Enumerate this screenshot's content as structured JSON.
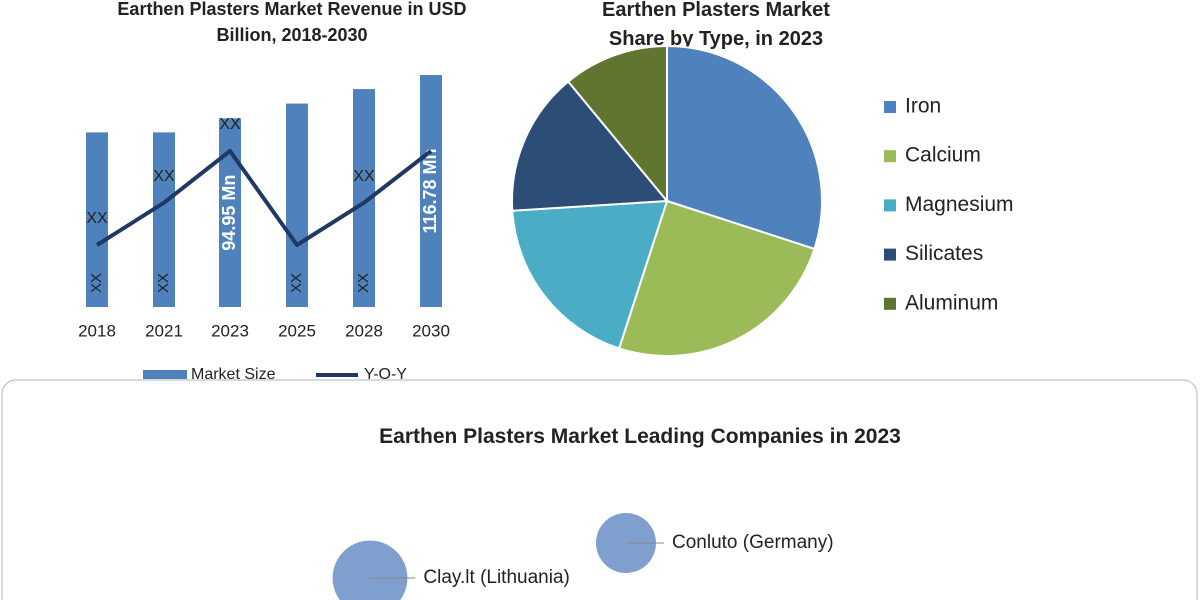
{
  "chart_data": [
    {
      "type": "bar_line",
      "title": "Earthen Plasters Market Revenue in USD Billion, 2018-2030",
      "categories": [
        "2018",
        "2021",
        "2023",
        "2025",
        "2028",
        "2030"
      ],
      "series": [
        {
          "name": "Market Size",
          "type": "bar",
          "color": "#4f81bd",
          "values": [
            87.9,
            87.9,
            94.95,
            102.4,
            109.7,
            116.78
          ],
          "value_labels": [
            "XX",
            "XX",
            "94.95 Mn",
            "XX",
            "XX",
            "116.78 Mn"
          ]
        },
        {
          "name": "Y-O-Y",
          "type": "line",
          "axis": "y2",
          "color": "#1f3864",
          "values": [
            2,
            4.7,
            8,
            2,
            4.7,
            8
          ],
          "value_labels": [
            "XX",
            "XX",
            "XX",
            null,
            "XX",
            null
          ]
        }
      ]
    },
    {
      "type": "pie",
      "title": "Earthen Plasters Market Share by Type, in 2023",
      "categories": [
        "Iron",
        "Calcium",
        "Magnesium",
        "Silicates",
        "Aluminum"
      ],
      "values": [
        30,
        25,
        19,
        15,
        11
      ],
      "colors": [
        "#4f81bd",
        "#9bbb59",
        "#4bacc6",
        "#2c4d75",
        "#5f7530"
      ]
    },
    {
      "type": "bubble",
      "title": "Earthen Plasters Market Leading Companies in 2023",
      "categories": [
        "Conluto (Germany)",
        "Clay.lt (Lithuania)"
      ],
      "values": [
        9,
        14
      ],
      "color": "#7f9fcf"
    }
  ]
}
